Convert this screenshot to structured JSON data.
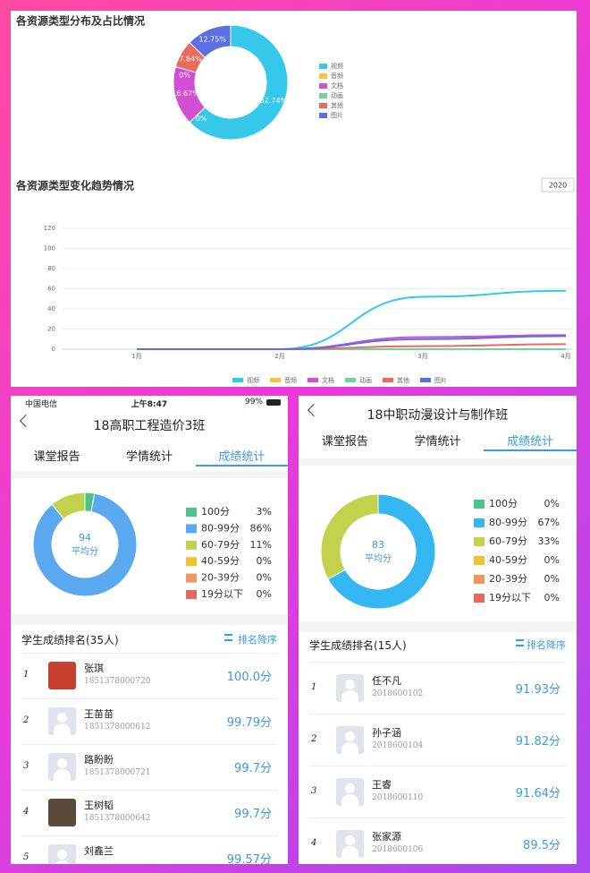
{
  "chart_data": [
    {
      "type": "pie",
      "title": "各资源类型分布及占比情况",
      "categories": [
        "视频",
        "音频",
        "文档",
        "动画",
        "其他",
        "图片"
      ],
      "values": [
        62.74,
        0,
        16.67,
        0,
        7.84,
        12.75
      ],
      "value_labels": [
        "62.74%",
        "0%",
        "16.67%",
        "0%",
        "7.84%",
        "12.75%"
      ],
      "colors": [
        "#36c8ea",
        "#f6c445",
        "#d24fd2",
        "#6fd3a0",
        "#ea6a5c",
        "#5b6fe2"
      ]
    },
    {
      "type": "line",
      "title": "各资源类型变化趋势情况",
      "year_select": "2020",
      "categories": [
        "1月",
        "2月",
        "3月",
        "4月"
      ],
      "ylim": [
        0,
        120
      ],
      "yticks": [
        0,
        20,
        40,
        60,
        80,
        100,
        120
      ],
      "grid": true,
      "series": [
        {
          "name": "视频",
          "color": "#36c8ea",
          "values": [
            0,
            0,
            52,
            58
          ]
        },
        {
          "name": "音频",
          "color": "#f6c445",
          "values": [
            0,
            0,
            0,
            0
          ]
        },
        {
          "name": "文档",
          "color": "#d24fd2",
          "values": [
            0,
            0,
            12,
            14
          ]
        },
        {
          "name": "动画",
          "color": "#6fd3a0",
          "values": [
            0,
            0,
            0,
            0
          ]
        },
        {
          "name": "其他",
          "color": "#ea6a5c",
          "values": [
            0,
            0,
            3,
            5
          ]
        },
        {
          "name": "图片",
          "color": "#5b6fe2",
          "values": [
            0,
            0,
            10,
            13
          ]
        }
      ]
    },
    {
      "type": "pie",
      "center_value": 94,
      "center_label": "平均分",
      "categories": [
        "100分",
        "80-99分",
        "60-79分",
        "40-59分",
        "20-39分",
        "19分以下"
      ],
      "values": [
        3,
        86,
        11,
        0,
        0,
        0
      ],
      "value_labels": [
        "3%",
        "86%",
        "11%",
        "0%",
        "0%",
        "0%"
      ],
      "colors": [
        "#4cc38a",
        "#5aa9f0",
        "#c3d24c",
        "#f0c232",
        "#ef9560",
        "#e8685a"
      ]
    },
    {
      "type": "pie",
      "center_value": 83,
      "center_label": "平均分",
      "categories": [
        "100分",
        "80-99分",
        "60-79分",
        "40-59分",
        "20-39分",
        "19分以下"
      ],
      "values": [
        0,
        67,
        33,
        0,
        0,
        0
      ],
      "value_labels": [
        "0%",
        "67%",
        "33%",
        "0%",
        "0%",
        "0%"
      ],
      "colors": [
        "#4cc38a",
        "#33b6f2",
        "#c3d24c",
        "#f0c232",
        "#ef9560",
        "#e8685a"
      ]
    }
  ],
  "panels": [
    {
      "status_bar": {
        "carrier": "中国电信",
        "time": "上午8:47",
        "battery": "99%"
      },
      "title": "18高职工程造价3班",
      "tabs": [
        "课堂报告",
        "学情统计",
        "成绩统计"
      ],
      "active_tab": 2,
      "ranking_title": "学生成绩排名(35人)",
      "sort_label": "排名降序",
      "students": [
        {
          "rank": 1,
          "name": "张琪",
          "id": "1851378000720",
          "score": "100.0分"
        },
        {
          "rank": 2,
          "name": "王苗苗",
          "id": "1851378000612",
          "score": "99.79分"
        },
        {
          "rank": 3,
          "name": "路盼盼",
          "id": "1851378000721",
          "score": "99.7分"
        },
        {
          "rank": 4,
          "name": "王树韬",
          "id": "1851378000642",
          "score": "99.7分"
        },
        {
          "rank": 5,
          "name": "刘鑫兰",
          "score": "99.57分"
        }
      ]
    },
    {
      "title": "18中职动漫设计与制作班",
      "tabs": [
        "课堂报告",
        "学情统计",
        "成绩统计"
      ],
      "active_tab": 2,
      "ranking_title": "学生成绩排名(15人)",
      "sort_label": "排名降序",
      "students": [
        {
          "rank": 1,
          "name": "任不凡",
          "id": "2018600102",
          "score": "91.93分"
        },
        {
          "rank": 2,
          "name": "孙子涵",
          "id": "2018600104",
          "score": "91.82分"
        },
        {
          "rank": 3,
          "name": "王睿",
          "id": "2018600110",
          "score": "91.64分"
        },
        {
          "rank": 4,
          "name": "张家源",
          "id": "2018600106",
          "score": "89.5分"
        }
      ]
    }
  ]
}
